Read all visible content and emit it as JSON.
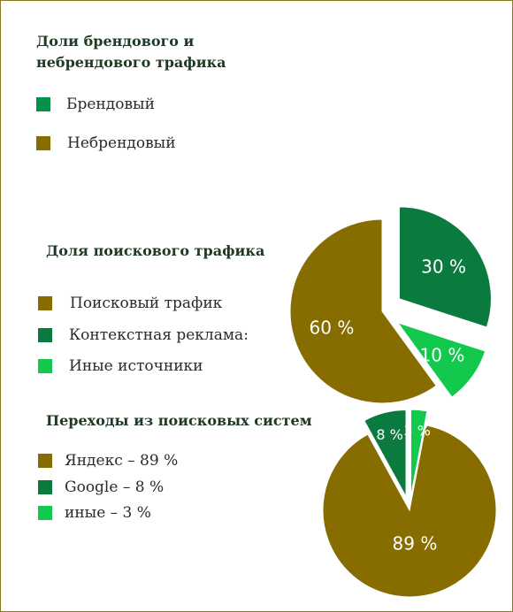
{
  "colors": {
    "olive": "#876c00",
    "green_dark": "#0a7a3e",
    "green_mid": "#00914a",
    "green_bright": "#12c94e",
    "title": "#1f3a24"
  },
  "chart_data": [
    {
      "type": "pie",
      "title": "Доли брендового и\nнебрендового трафика",
      "title_lines": [
        "Доли брендового и",
        "небрендового трафика"
      ],
      "legend_placement": "left",
      "series": [
        {
          "name": "Брендовый",
          "color": "#00914a"
        },
        {
          "name": "Небрендовый",
          "color": "#876c00"
        }
      ]
    },
    {
      "type": "pie",
      "title": "Доля поискового трафика",
      "legend_placement": "left",
      "categories": [
        "Поисковый трафик",
        "Контекстная реклама:",
        "Иные источники"
      ],
      "values": [
        60,
        30,
        10
      ],
      "value_labels": [
        "60 %",
        "30 %",
        "10 %"
      ],
      "colors": [
        "#876c00",
        "#0a7a3e",
        "#12c94e"
      ]
    },
    {
      "type": "pie",
      "title": "Переходы из поисковых систем",
      "legend_placement": "left",
      "categories": [
        "Яндекс – 89 %",
        "Google – 8 %",
        "иные – 3 %"
      ],
      "values": [
        89,
        8,
        3
      ],
      "value_labels": [
        "89 %",
        "8 %",
        "3 %"
      ],
      "colors": [
        "#876c00",
        "#0a7a3e",
        "#12c94e"
      ]
    }
  ]
}
